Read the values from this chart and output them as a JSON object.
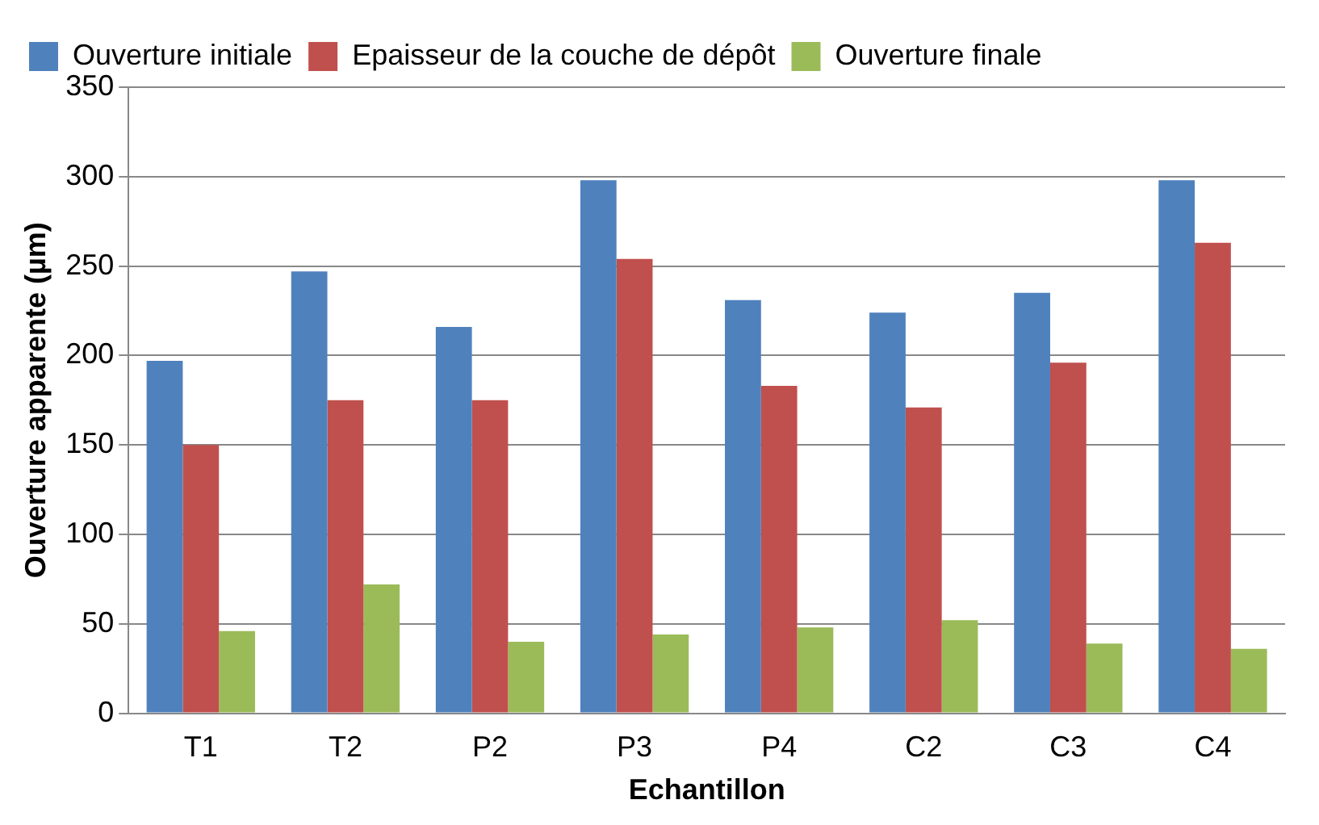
{
  "chart_data": {
    "type": "bar",
    "xlabel": "Echantillon",
    "ylabel": "Ouverture apparente (µm)",
    "categories": [
      "T1",
      "T2",
      "P2",
      "P3",
      "P4",
      "C2",
      "C3",
      "C4"
    ],
    "series": [
      {
        "name": "Ouverture initiale",
        "color": "#4f81bd",
        "values": [
          197,
          247,
          216,
          298,
          231,
          224,
          235,
          298
        ]
      },
      {
        "name": "Epaisseur de la couche de dépôt",
        "color": "#c0504d",
        "values": [
          150,
          175,
          175,
          254,
          183,
          171,
          196,
          263
        ]
      },
      {
        "name": "Ouverture finale",
        "color": "#9bbb59",
        "values": [
          46,
          72,
          40,
          44,
          48,
          52,
          39,
          36
        ]
      }
    ],
    "ylim": [
      0,
      350
    ],
    "yticks": [
      0,
      50,
      100,
      150,
      200,
      250,
      300,
      350
    ],
    "grid": "y",
    "legend": "top left"
  }
}
